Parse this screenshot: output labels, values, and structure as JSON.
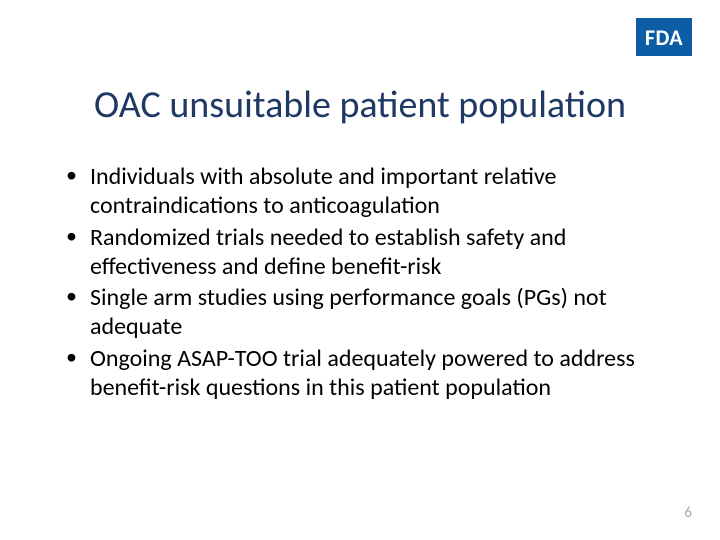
{
  "logo": {
    "text": "FDA",
    "background_color": "#0b5ea5",
    "text_color": "#ffffff"
  },
  "title": {
    "text": "OAC unsuitable patient population",
    "color": "#1f3864",
    "fontsize": 38
  },
  "bullets": {
    "items": [
      "Individuals with absolute and important relative contraindications to anticoagulation",
      "Randomized trials needed to establish safety and effectiveness and define benefit-risk",
      "Single arm studies using performance goals (PGs) not adequate",
      "Ongoing ASAP-TOO trial adequately powered to address benefit-risk questions in this patient population"
    ],
    "color": "#000000",
    "fontsize": 24
  },
  "page_number": {
    "text": "6",
    "color": "#a6a6a6"
  },
  "background_color": "#ffffff"
}
